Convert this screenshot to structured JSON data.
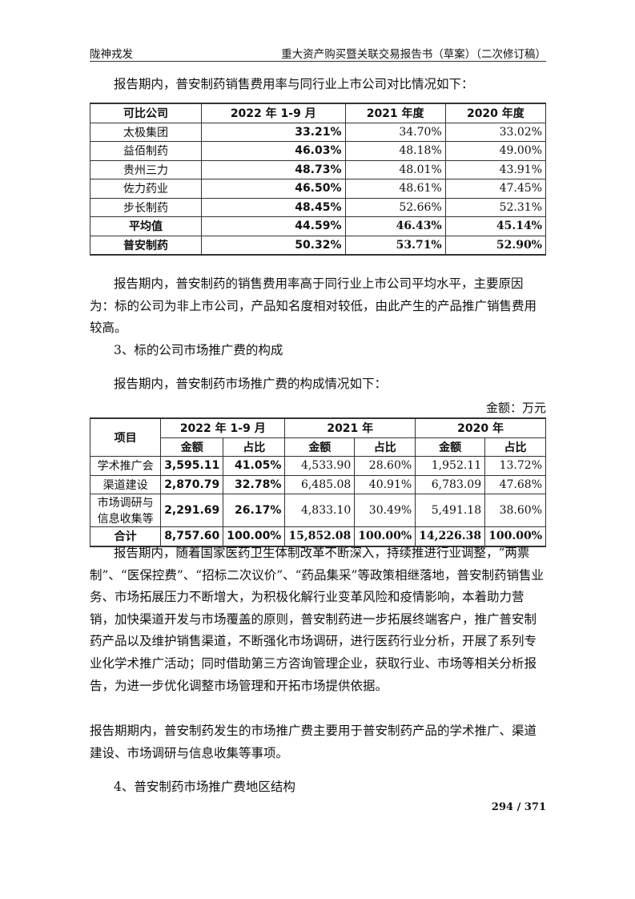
{
  "header": {
    "left": "陇神戎发",
    "right": "重大资产购买暨关联交易报告书（草案）（二次修订稿）"
  },
  "intro1": "报告期内，普安制药销售费用率与同行业上市公司对比情况如下：",
  "table1": {
    "headers": [
      "可比公司",
      "2022 年 1-9 月",
      "2021 年度",
      "2020 年度"
    ],
    "rows": [
      [
        "太极集团",
        "33.21%",
        "34.70%",
        "33.02%"
      ],
      [
        "益佰制药",
        "46.03%",
        "48.18%",
        "49.00%"
      ],
      [
        "贵州三力",
        "48.73%",
        "48.01%",
        "43.91%"
      ],
      [
        "佐力药业",
        "46.50%",
        "48.61%",
        "47.45%"
      ],
      [
        "步长制药",
        "48.45%",
        "52.66%",
        "52.31%"
      ],
      [
        "平均值",
        "44.59%",
        "46.43%",
        "45.14%"
      ],
      [
        "普安制药",
        "50.32%",
        "53.71%",
        "52.90%"
      ]
    ]
  },
  "para2": "报告期内，普安制药的销售费用率高于同行业上市公司平均水平，主要原因为：标的公司为非上市公司，产品知名度相对较低，由此产生的产品推广销售费用较高。",
  "section3": "3、标的公司市场推广费的构成",
  "intro3": "报告期内，普安制药市场推广费的构成情况如下：",
  "unit": "金额：万元",
  "table2": {
    "item_header": "项目",
    "periods": [
      "2022 年 1-9 月",
      "2021 年",
      "2020 年"
    ],
    "sub": [
      "金额",
      "占比"
    ],
    "rows": [
      [
        "学术推广会",
        "3,595.11",
        "41.05%",
        "4,533.90",
        "28.60%",
        "1,952.11",
        "13.72%"
      ],
      [
        "渠道建设",
        "2,870.79",
        "32.78%",
        "6,485.08",
        "40.91%",
        "6,783.09",
        "47.68%"
      ],
      [
        "市场调研与信息收集等",
        "2,291.69",
        "26.17%",
        "4,833.10",
        "30.49%",
        "5,491.18",
        "38.60%"
      ],
      [
        "合计",
        "8,757.60",
        "100.00%",
        "15,852.08",
        "100.00%",
        "14,226.38",
        "100.00%"
      ]
    ]
  },
  "para4": "报告期内，随着国家医药卫生体制改革不断深入，持续推进行业调整，“两票制”、“医保控费”、“招标二次议价”、“药品集采”等政策相继落地，普安制药销售业务、市场拓展压力不断增大，为积极化解行业变革风险和疫情影响，本着助力营销，加快渠道开发与市场覆盖的原则，普安制药进一步拓展终端客户，推广普安制药产品以及维护销售渠道，不断强化市场调研，进行医药行业分析，开展了系列专业化学术推广活动；同时借助第三方咨询管理企业，获取行业、市场等相关分析报告，为进一步优化调整市场管理和开拓市场提供依据。",
  "para5": "报告期期内，普安制药发生的市场推广费主要用于普安制药产品的学术推广、渠道建设、市场调研与信息收集等事项。",
  "section4": "4、普安制药市场推广费地区结构",
  "page_number": "294 / 371"
}
